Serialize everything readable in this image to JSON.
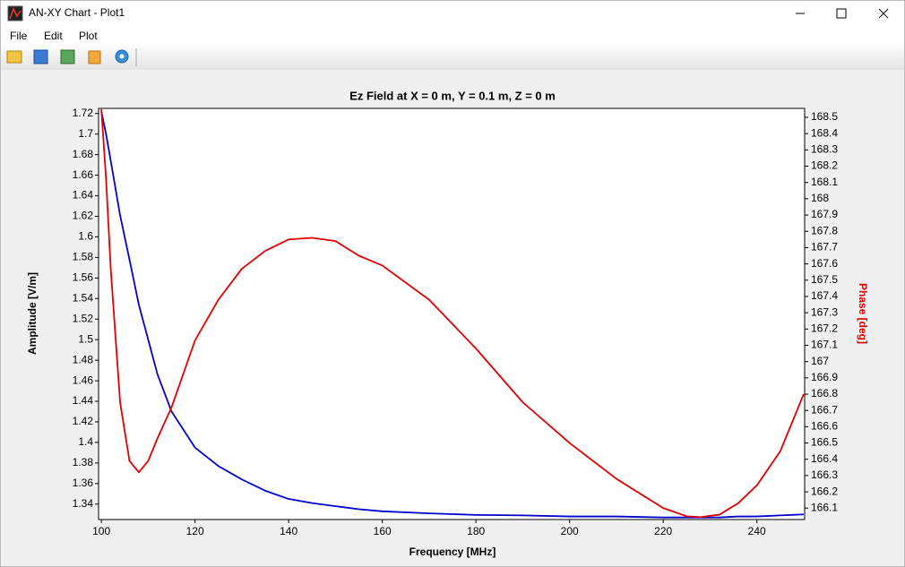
{
  "window": {
    "title": "AN-XY Chart - Plot1"
  },
  "menu": [
    "File",
    "Edit",
    "Plot"
  ],
  "chart_data": {
    "type": "line",
    "title": "Ez Field at X = 0 m, Y = 0.1 m, Z = 0 m",
    "x_label": "Frequency [MHz]",
    "y_label": "Amplitude [V/m]",
    "y2_label": "Phase [deg]",
    "x": [
      100,
      101,
      102,
      104,
      106,
      108,
      110,
      112,
      115,
      120,
      125,
      130,
      135,
      140,
      145,
      150,
      155,
      160,
      170,
      180,
      190,
      200,
      210,
      220,
      225,
      228,
      232,
      236,
      240,
      245,
      250
    ],
    "series": [
      {
        "name": "Amplitude",
        "color": "#0000cc",
        "axis": "y",
        "values": [
          1.722,
          1.7,
          1.674,
          1.621,
          1.578,
          1.534,
          1.5,
          1.466,
          1.43,
          1.395,
          1.377,
          1.364,
          1.353,
          1.345,
          1.341,
          1.338,
          1.335,
          1.333,
          1.331,
          1.3295,
          1.329,
          1.328,
          1.328,
          1.327,
          1.327,
          1.327,
          1.327,
          1.328,
          1.328,
          1.329,
          1.33
        ]
      },
      {
        "name": "Phase",
        "color": "#e00000",
        "axis": "y2",
        "values": [
          168.55,
          168.12,
          167.57,
          166.75,
          166.39,
          166.32,
          166.39,
          166.53,
          166.72,
          167.13,
          167.38,
          167.57,
          167.68,
          167.75,
          167.76,
          167.74,
          167.65,
          167.59,
          167.38,
          167.08,
          166.75,
          166.5,
          166.28,
          166.1,
          166.05,
          166.045,
          166.06,
          166.13,
          166.24,
          166.45,
          166.8
        ]
      }
    ],
    "xlim": [
      99.4,
      250.2
    ],
    "xticks": [
      100,
      120,
      140,
      160,
      180,
      200,
      220,
      240
    ],
    "ylim": [
      1.325,
      1.725
    ],
    "yticks": [
      1.34,
      1.36,
      1.38,
      1.4,
      1.42,
      1.44,
      1.46,
      1.48,
      1.5,
      1.52,
      1.54,
      1.56,
      1.58,
      1.6,
      1.62,
      1.64,
      1.66,
      1.68,
      1.7,
      1.72
    ],
    "y2lim": [
      166.03,
      168.555
    ],
    "y2ticks": [
      166.1,
      166.2,
      166.3,
      166.4,
      166.5,
      166.6,
      166.7,
      166.8,
      166.9,
      167,
      167.1,
      167.2,
      167.3,
      167.4,
      167.5,
      167.6,
      167.7,
      167.8,
      167.9,
      168,
      168.1,
      168.2,
      168.3,
      168.4,
      168.5
    ],
    "y2_label_color": "#e00000",
    "grid": false
  }
}
